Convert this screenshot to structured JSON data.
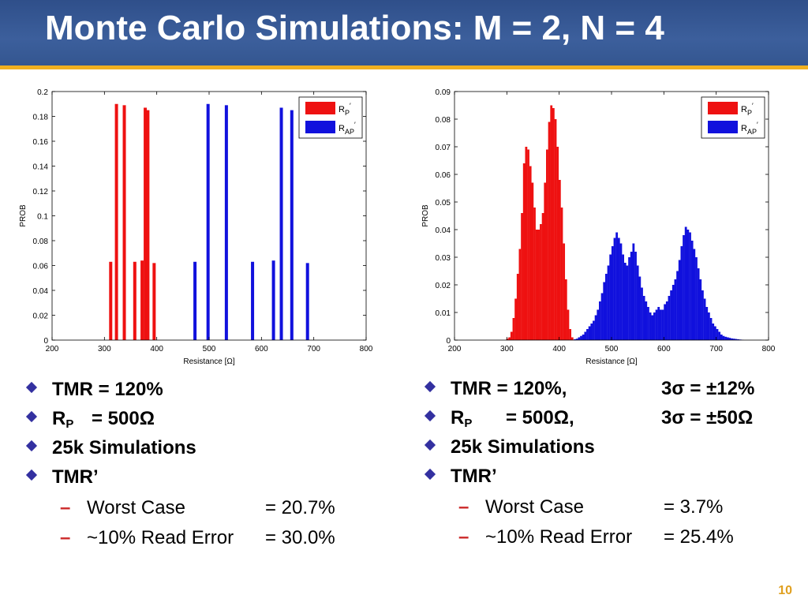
{
  "slide": {
    "title": "Monte Carlo Simulations: M = 2, N = 4",
    "page_number": "10"
  },
  "colors": {
    "header": "#3a5a96",
    "accent_rule": "#f0b020",
    "rp": "#ee1111",
    "rap": "#1111dd",
    "bullet": "#3330a0",
    "dash": "#cc2a2a"
  },
  "left": {
    "bullets": [
      {
        "text": "TMR = 120%"
      },
      {
        "prefix": "R",
        "subscript": "P",
        "text": "= 500Ω"
      },
      {
        "text": "25k Simulations"
      },
      {
        "text": "TMR’"
      }
    ],
    "subitems": [
      {
        "label": "Worst Case",
        "value": "= 20.7%"
      },
      {
        "label": "~10% Read Error",
        "value": "= 30.0%"
      }
    ]
  },
  "right": {
    "bullets": [
      {
        "text": "TMR = 120%,",
        "extra": "3σ = ±12%"
      },
      {
        "prefix": "R",
        "subscript": "P",
        "text": "= 500Ω,",
        "extra": "3σ = ±50Ω"
      },
      {
        "text": "25k Simulations"
      },
      {
        "text": "TMR’"
      }
    ],
    "subitems": [
      {
        "label": "Worst Case",
        "value": "= 3.7%"
      },
      {
        "label": "~10% Read Error",
        "value": "= 25.4%"
      }
    ]
  },
  "chart_data": [
    {
      "type": "bar",
      "xlabel": "Resistance [Ω]",
      "ylabel": "PROB",
      "xlim": [
        200,
        800
      ],
      "ylim": [
        0,
        0.2
      ],
      "xticks": [
        "200",
        "300",
        "400",
        "500",
        "600",
        "700",
        "800"
      ],
      "yticks": [
        "0",
        "0.02",
        "0.04",
        "0.06",
        "0.08",
        "0.1",
        "0.12",
        "0.14",
        "0.16",
        "0.18",
        "0.2"
      ],
      "legend_position": "top-right",
      "legend": [
        {
          "base": "R",
          "sub": "P",
          "sup": "′"
        },
        {
          "base": "R",
          "sub": "AP",
          "sup": "′"
        }
      ],
      "series": [
        {
          "x": [
            312,
            323,
            338,
            358,
            372,
            378,
            383,
            395
          ],
          "values": [
            0.063,
            0.19,
            0.189,
            0.063,
            0.064,
            0.187,
            0.185,
            0.062
          ]
        },
        {
          "x": [
            473,
            498,
            533,
            583,
            623,
            638,
            658,
            688
          ],
          "values": [
            0.063,
            0.19,
            0.189,
            0.063,
            0.064,
            0.187,
            0.185,
            0.062
          ]
        }
      ]
    },
    {
      "type": "bar",
      "xlabel": "Resistance [Ω]",
      "ylabel": "PROB",
      "xlim": [
        200,
        800
      ],
      "ylim": [
        0,
        0.09
      ],
      "xticks": [
        "200",
        "300",
        "400",
        "500",
        "600",
        "700",
        "800"
      ],
      "yticks": [
        "0",
        "0.01",
        "0.02",
        "0.03",
        "0.04",
        "0.05",
        "0.06",
        "0.07",
        "0.08",
        "0.09"
      ],
      "legend_position": "top-right",
      "legend": [
        {
          "base": "R",
          "sub": "P",
          "sup": "′"
        },
        {
          "base": "R",
          "sub": "AP",
          "sup": "′"
        }
      ],
      "series": [
        {
          "x": [
            301,
            305,
            309,
            313,
            317,
            321,
            325,
            329,
            333,
            337,
            341,
            345,
            349,
            353,
            357,
            361,
            365,
            369,
            373,
            377,
            381,
            385,
            389,
            393,
            397,
            401,
            405,
            409,
            413,
            417,
            421,
            425
          ],
          "values": [
            0.0005,
            0.001,
            0.003,
            0.008,
            0.015,
            0.024,
            0.033,
            0.046,
            0.064,
            0.07,
            0.069,
            0.063,
            0.057,
            0.048,
            0.04,
            0.04,
            0.042,
            0.046,
            0.057,
            0.069,
            0.079,
            0.085,
            0.084,
            0.08,
            0.07,
            0.058,
            0.048,
            0.035,
            0.022,
            0.011,
            0.004,
            0.001
          ]
        },
        {
          "x": [
            430,
            434,
            438,
            442,
            446,
            450,
            454,
            458,
            462,
            466,
            470,
            474,
            478,
            482,
            486,
            490,
            494,
            498,
            502,
            506,
            510,
            514,
            518,
            522,
            526,
            530,
            534,
            538,
            542,
            546,
            550,
            554,
            558,
            562,
            566,
            570,
            574,
            578,
            582,
            586,
            590,
            594,
            598,
            602,
            606,
            610,
            614,
            618,
            622,
            626,
            630,
            634,
            638,
            642,
            646,
            650,
            654,
            658,
            662,
            666,
            670,
            674,
            678,
            682,
            686,
            690,
            694,
            698,
            702,
            706,
            710,
            714,
            718,
            722,
            726,
            730,
            734,
            738,
            742,
            746,
            750
          ],
          "values": [
            0.0003,
            0.0005,
            0.001,
            0.0015,
            0.002,
            0.003,
            0.004,
            0.005,
            0.006,
            0.007,
            0.009,
            0.011,
            0.014,
            0.017,
            0.021,
            0.024,
            0.027,
            0.031,
            0.034,
            0.037,
            0.039,
            0.037,
            0.035,
            0.031,
            0.028,
            0.027,
            0.03,
            0.032,
            0.035,
            0.032,
            0.027,
            0.023,
            0.019,
            0.016,
            0.014,
            0.012,
            0.01,
            0.009,
            0.01,
            0.011,
            0.012,
            0.011,
            0.011,
            0.013,
            0.014,
            0.016,
            0.018,
            0.02,
            0.022,
            0.025,
            0.029,
            0.034,
            0.038,
            0.041,
            0.04,
            0.039,
            0.036,
            0.033,
            0.03,
            0.026,
            0.022,
            0.018,
            0.015,
            0.012,
            0.01,
            0.008,
            0.006,
            0.005,
            0.004,
            0.003,
            0.002,
            0.0015,
            0.0012,
            0.001,
            0.0008,
            0.0006,
            0.0005,
            0.0004,
            0.0003,
            0.0002,
            0.0001
          ]
        }
      ]
    }
  ]
}
